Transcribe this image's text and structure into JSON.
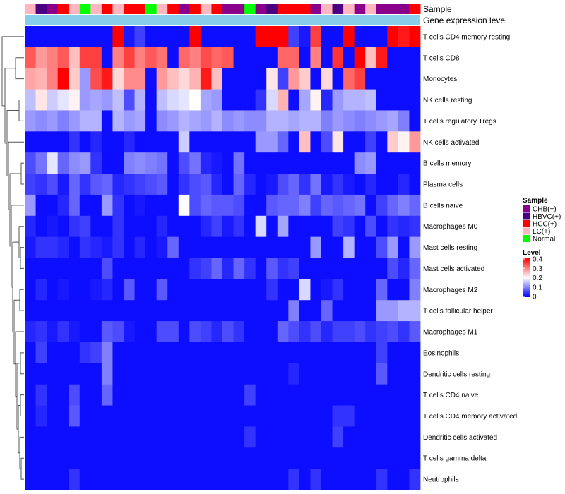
{
  "chart_data": {
    "type": "heatmap",
    "title": "",
    "annotation_labels": {
      "sample": "Sample",
      "gene_level": "Gene expression level"
    },
    "columns": 36,
    "sample_annotation": [
      "LC(+)",
      "HBVC(+)",
      "CHB(+)",
      "HCC(+)",
      "LC(+)",
      "Normal",
      "LC(+)",
      "HCC(+)",
      "LC(+)",
      "HCC(+)",
      "HCC(+)",
      "Normal",
      "LC(+)",
      "HCC(+)",
      "CHB(+)",
      "HCC(+)",
      "LC(+)",
      "HCC(+)",
      "CHB(+)",
      "CHB(+)",
      "Normal",
      "CHB(+)",
      "HBVC(+)",
      "HCC(+)",
      "HCC(+)",
      "HCC(+)",
      "CHB(+)",
      "LC(+)",
      "HBVC(+)",
      "LC(+)",
      "CHB(+)",
      "LC(+)",
      "CHB(+)",
      "CHB(+)",
      "CHB(+)",
      "HCC(+)"
    ],
    "row_labels": [
      "T cells CD4 memory resting",
      "T cells CD8",
      "Monocytes",
      "NK cells resting",
      "T cells regulatory  Tregs",
      "NK cells activated",
      "B cells memory",
      "Plasma cells",
      "B cells naive",
      "Macrophages M0",
      "Mast cells resting",
      "Mast cells activated",
      "Macrophages M2",
      "T cells follicular helper",
      "Macrophages M1",
      "Eosinophils",
      "Dendritic cells resting",
      "T cells CD4 naive",
      "T cells CD4 memory activated",
      "Dendritic cells activated",
      "T cells gamma delta",
      "Neutrophils"
    ],
    "values": [
      [
        0.01,
        0.01,
        0.01,
        0.01,
        0.01,
        0.01,
        0.01,
        0.01,
        0.4,
        0.02,
        0.05,
        0.01,
        0.01,
        0.01,
        0.01,
        0.4,
        0.01,
        0.01,
        0.01,
        0.01,
        0.01,
        0.4,
        0.4,
        0.4,
        0.05,
        0.02,
        0.35,
        0.01,
        0.01,
        0.4,
        0.01,
        0.01,
        0.01,
        0.4,
        0.38,
        0.4
      ],
      [
        0.33,
        0.28,
        0.3,
        0.33,
        0.25,
        0.35,
        0.35,
        0.01,
        0.3,
        0.35,
        0.3,
        0.33,
        0.31,
        0.01,
        0.32,
        0.3,
        0.34,
        0.32,
        0.33,
        0.01,
        0.01,
        0.01,
        0.01,
        0.32,
        0.32,
        0.01,
        0.3,
        0.01,
        0.36,
        0.01,
        0.4,
        0.25,
        0.38,
        0.01,
        0.01,
        0.01
      ],
      [
        0.27,
        0.26,
        0.3,
        0.4,
        0.24,
        0.12,
        0.34,
        0.38,
        0.23,
        0.29,
        0.29,
        0.01,
        0.28,
        0.25,
        0.23,
        0.26,
        0.38,
        0.25,
        0.01,
        0.01,
        0.01,
        0.01,
        0.22,
        0.05,
        0.28,
        0.24,
        0.01,
        0.23,
        0.01,
        0.32,
        0.35,
        0.01,
        0.01,
        0.01,
        0.01,
        0.01
      ],
      [
        0.15,
        0.22,
        0.16,
        0.18,
        0.21,
        0.12,
        0.13,
        0.12,
        0.15,
        0.06,
        0.14,
        0.01,
        0.15,
        0.17,
        0.18,
        0.2,
        0.13,
        0.12,
        0.01,
        0.01,
        0.01,
        0.04,
        0.17,
        0.26,
        0.01,
        0.13,
        0.21,
        0.03,
        0.12,
        0.14,
        0.14,
        0.15,
        0.01,
        0.01,
        0.01,
        0.01
      ],
      [
        0.12,
        0.11,
        0.12,
        0.1,
        0.12,
        0.14,
        0.14,
        0.01,
        0.14,
        0.12,
        0.13,
        0.01,
        0.11,
        0.12,
        0.14,
        0.13,
        0.12,
        0.14,
        0.11,
        0.12,
        0.11,
        0.11,
        0.14,
        0.14,
        0.13,
        0.14,
        0.14,
        0.1,
        0.12,
        0.11,
        0.1,
        0.11,
        0.12,
        0.13,
        0.1,
        0.01
      ],
      [
        0.01,
        0.01,
        0.01,
        0.01,
        0.04,
        0.01,
        0.03,
        0.01,
        0.01,
        0.03,
        0.01,
        0.01,
        0.01,
        0.01,
        0.16,
        0.01,
        0.01,
        0.01,
        0.01,
        0.01,
        0.01,
        0.12,
        0.12,
        0.08,
        0.01,
        0.25,
        0.01,
        0.06,
        0.22,
        0.01,
        0.01,
        0.05,
        0.01,
        0.24,
        0.21,
        0.28
      ],
      [
        0.06,
        0.09,
        0.18,
        0.08,
        0.11,
        0.12,
        0.04,
        0.01,
        0.01,
        0.1,
        0.11,
        0.1,
        0.09,
        0.01,
        0.06,
        0.09,
        0.03,
        0.02,
        0.01,
        0.09,
        0.01,
        0.01,
        0.01,
        0.01,
        0.01,
        0.01,
        0.01,
        0.01,
        0.01,
        0.01,
        0.11,
        0.12,
        0.01,
        0.01,
        0.01,
        0.01
      ],
      [
        0.05,
        0.04,
        0.06,
        0.02,
        0.08,
        0.04,
        0.07,
        0.08,
        0.03,
        0.04,
        0.05,
        0.06,
        0.07,
        0.01,
        0.04,
        0.06,
        0.07,
        0.03,
        0.01,
        0.08,
        0.03,
        0.01,
        0.02,
        0.06,
        0.08,
        0.04,
        0.09,
        0.02,
        0.04,
        0.02,
        0.01,
        0.03,
        0.01,
        0.01,
        0.03,
        0.01
      ],
      [
        0.12,
        0.01,
        0.01,
        0.03,
        0.08,
        0.01,
        0.01,
        0.12,
        0.04,
        0.01,
        0.02,
        0.01,
        0.01,
        0.01,
        0.2,
        0.06,
        0.08,
        0.07,
        0.07,
        0.06,
        0.01,
        0.01,
        0.07,
        0.08,
        0.08,
        0.1,
        0.05,
        0.08,
        0.07,
        0.08,
        0.09,
        0.01,
        0.05,
        0.08,
        0.1,
        0.08
      ],
      [
        0.03,
        0.01,
        0.02,
        0.01,
        0.04,
        0.05,
        0.01,
        0.01,
        0.04,
        0.01,
        0.01,
        0.01,
        0.03,
        0.01,
        0.01,
        0.01,
        0.03,
        0.05,
        0.02,
        0.04,
        0.01,
        0.17,
        0.01,
        0.13,
        0.01,
        0.01,
        0.01,
        0.01,
        0.05,
        0.04,
        0.01,
        0.06,
        0.01,
        0.04,
        0.03,
        0.04
      ],
      [
        0.02,
        0.04,
        0.04,
        0.03,
        0.01,
        0.04,
        0.03,
        0.02,
        0.04,
        0.01,
        0.03,
        0.01,
        0.02,
        0.08,
        0.01,
        0.01,
        0.01,
        0.01,
        0.01,
        0.01,
        0.01,
        0.01,
        0.01,
        0.01,
        0.01,
        0.01,
        0.12,
        0.01,
        0.01,
        0.14,
        0.01,
        0.01,
        0.06,
        0.12,
        0.01,
        0.12
      ],
      [
        0.01,
        0.01,
        0.01,
        0.01,
        0.01,
        0.01,
        0.01,
        0.06,
        0.01,
        0.01,
        0.01,
        0.01,
        0.01,
        0.01,
        0.01,
        0.04,
        0.05,
        0.08,
        0.03,
        0.08,
        0.04,
        0.01,
        0.07,
        0.04,
        0.05,
        0.01,
        0.01,
        0.01,
        0.01,
        0.01,
        0.01,
        0.01,
        0.01,
        0.06,
        0.03,
        0.08
      ],
      [
        0.01,
        0.03,
        0.01,
        0.02,
        0.01,
        0.01,
        0.02,
        0.03,
        0.01,
        0.07,
        0.01,
        0.01,
        0.07,
        0.01,
        0.01,
        0.01,
        0.01,
        0.01,
        0.01,
        0.01,
        0.01,
        0.01,
        0.04,
        0.01,
        0.01,
        0.17,
        0.01,
        0.02,
        0.04,
        0.01,
        0.01,
        0.01,
        0.08,
        0.01,
        0.01,
        0.1
      ],
      [
        0.01,
        0.01,
        0.01,
        0.01,
        0.01,
        0.01,
        0.01,
        0.01,
        0.01,
        0.01,
        0.01,
        0.01,
        0.01,
        0.01,
        0.01,
        0.01,
        0.01,
        0.01,
        0.01,
        0.01,
        0.01,
        0.01,
        0.01,
        0.01,
        0.1,
        0.01,
        0.01,
        0.08,
        0.01,
        0.01,
        0.01,
        0.01,
        0.12,
        0.12,
        0.14,
        0.14
      ],
      [
        0.03,
        0.04,
        0.02,
        0.04,
        0.02,
        0.01,
        0.01,
        0.07,
        0.06,
        0.02,
        0.01,
        0.01,
        0.06,
        0.06,
        0.01,
        0.06,
        0.05,
        0.03,
        0.06,
        0.04,
        0.01,
        0.01,
        0.01,
        0.08,
        0.06,
        0.04,
        0.06,
        0.03,
        0.05,
        0.05,
        0.06,
        0.04,
        0.05,
        0.06,
        0.04,
        0.07
      ],
      [
        0.01,
        0.05,
        0.01,
        0.01,
        0.01,
        0.04,
        0.05,
        0.1,
        0.01,
        0.01,
        0.01,
        0.01,
        0.01,
        0.01,
        0.01,
        0.01,
        0.01,
        0.01,
        0.01,
        0.01,
        0.01,
        0.01,
        0.01,
        0.01,
        0.01,
        0.01,
        0.01,
        0.01,
        0.01,
        0.01,
        0.01,
        0.01,
        0.05,
        0.01,
        0.01,
        0.01
      ],
      [
        0.01,
        0.01,
        0.01,
        0.01,
        0.01,
        0.01,
        0.01,
        0.1,
        0.01,
        0.01,
        0.01,
        0.01,
        0.01,
        0.01,
        0.01,
        0.01,
        0.01,
        0.01,
        0.01,
        0.01,
        0.01,
        0.01,
        0.01,
        0.01,
        0.03,
        0.01,
        0.01,
        0.01,
        0.01,
        0.01,
        0.01,
        0.01,
        0.07,
        0.01,
        0.01,
        0.01
      ],
      [
        0.01,
        0.04,
        0.01,
        0.01,
        0.06,
        0.01,
        0.01,
        0.08,
        0.01,
        0.01,
        0.01,
        0.01,
        0.01,
        0.01,
        0.01,
        0.01,
        0.01,
        0.01,
        0.01,
        0.01,
        0.05,
        0.01,
        0.01,
        0.01,
        0.01,
        0.01,
        0.01,
        0.01,
        0.01,
        0.01,
        0.01,
        0.01,
        0.01,
        0.01,
        0.01,
        0.01
      ],
      [
        0.01,
        0.03,
        0.01,
        0.01,
        0.07,
        0.01,
        0.01,
        0.01,
        0.01,
        0.01,
        0.01,
        0.01,
        0.01,
        0.01,
        0.01,
        0.01,
        0.01,
        0.01,
        0.01,
        0.01,
        0.01,
        0.01,
        0.01,
        0.01,
        0.01,
        0.01,
        0.01,
        0.01,
        0.04,
        0.04,
        0.01,
        0.01,
        0.01,
        0.01,
        0.01,
        0.01
      ],
      [
        0.01,
        0.01,
        0.01,
        0.01,
        0.01,
        0.01,
        0.01,
        0.01,
        0.01,
        0.01,
        0.01,
        0.01,
        0.01,
        0.01,
        0.01,
        0.01,
        0.01,
        0.01,
        0.01,
        0.01,
        0.04,
        0.01,
        0.01,
        0.01,
        0.01,
        0.01,
        0.01,
        0.01,
        0.05,
        0.01,
        0.01,
        0.01,
        0.01,
        0.01,
        0.01,
        0.01
      ],
      [
        0.01,
        0.01,
        0.01,
        0.01,
        0.01,
        0.01,
        0.01,
        0.01,
        0.01,
        0.01,
        0.01,
        0.01,
        0.01,
        0.01,
        0.01,
        0.01,
        0.01,
        0.01,
        0.01,
        0.01,
        0.01,
        0.01,
        0.01,
        0.01,
        0.01,
        0.01,
        0.01,
        0.01,
        0.01,
        0.01,
        0.01,
        0.01,
        0.01,
        0.01,
        0.01,
        0.01
      ],
      [
        0.01,
        0.01,
        0.01,
        0.01,
        0.04,
        0.01,
        0.01,
        0.01,
        0.01,
        0.01,
        0.01,
        0.01,
        0.01,
        0.01,
        0.01,
        0.01,
        0.01,
        0.01,
        0.01,
        0.01,
        0.01,
        0.01,
        0.01,
        0.01,
        0.04,
        0.01,
        0.04,
        0.01,
        0.01,
        0.01,
        0.01,
        0.01,
        0.04,
        0.01,
        0.01,
        0.04
      ]
    ],
    "color_scale": {
      "min": 0,
      "mid": 0.2,
      "max": 0.4,
      "low_color": "#0000ff",
      "mid_color": "#ffffff",
      "high_color": "#ff0000"
    },
    "legend": {
      "sample": {
        "title": "Sample",
        "entries": [
          {
            "label": "CHB(+)",
            "color": "#8b008b"
          },
          {
            "label": "HBVC(+)",
            "color": "#4b0082"
          },
          {
            "label": "HCC(+)",
            "color": "#ff0000"
          },
          {
            "label": "LC(+)",
            "color": "#ffb6c1"
          },
          {
            "label": "Normal",
            "color": "#00ff00"
          }
        ]
      },
      "level": {
        "title": "Level",
        "ticks": [
          "0.4",
          "0.3",
          "0.2",
          "0.1",
          "0"
        ]
      }
    },
    "gene_level_color": "#87ceeb",
    "dendrogram": "row"
  }
}
